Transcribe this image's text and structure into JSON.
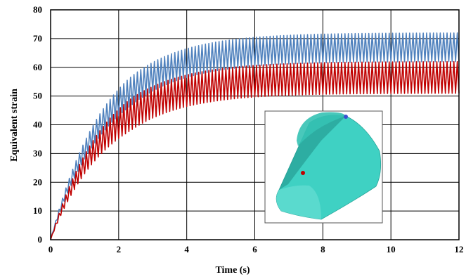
{
  "chart_data": {
    "type": "line",
    "title": "",
    "xlabel": "Time (s)",
    "ylabel": "Equivalent strain",
    "xlim": [
      0,
      12
    ],
    "ylim": [
      0,
      80
    ],
    "x_ticks": [
      0,
      2,
      4,
      6,
      8,
      10,
      12
    ],
    "y_ticks": [
      0,
      10,
      20,
      30,
      40,
      50,
      60,
      70,
      80
    ],
    "grid": true,
    "legend": "none",
    "series": [
      {
        "color": "#4f81bd",
        "description_points": [
          {
            "t": 0,
            "mean": 0,
            "amplitude": 0
          },
          {
            "t": 1,
            "mean": 26,
            "amplitude": 4
          },
          {
            "t": 2,
            "mean": 42,
            "amplitude": 5
          },
          {
            "t": 4,
            "mean": 58,
            "amplitude": 5
          },
          {
            "t": 6,
            "mean": 64,
            "amplitude": 5
          },
          {
            "t": 8,
            "mean": 66,
            "amplitude": 5
          },
          {
            "t": 12,
            "mean": 67,
            "amplitude": 5
          }
        ],
        "asymptote_mean": 67,
        "asymptote_amplitude": 5,
        "time_constant": 1.6,
        "cycles": 120
      },
      {
        "color": "#c00000",
        "description_points": [
          {
            "t": 0,
            "mean": 0,
            "amplitude": 0
          },
          {
            "t": 1,
            "mean": 22,
            "amplitude": 4
          },
          {
            "t": 2,
            "mean": 36,
            "amplitude": 5
          },
          {
            "t": 4,
            "mean": 49,
            "amplitude": 5.5
          },
          {
            "t": 6,
            "mean": 54,
            "amplitude": 5.5
          },
          {
            "t": 8,
            "mean": 56,
            "amplitude": 5.5
          },
          {
            "t": 12,
            "mean": 56.5,
            "amplitude": 5.5
          }
        ],
        "asymptote_mean": 56.5,
        "asymptote_amplitude": 5.5,
        "time_constant": 1.6,
        "cycles": 120
      }
    ],
    "inset": {
      "fill_color": "#3fd1c3",
      "markers": [
        {
          "color": "#c00000"
        },
        {
          "color": "#3a4fd0"
        }
      ]
    }
  }
}
